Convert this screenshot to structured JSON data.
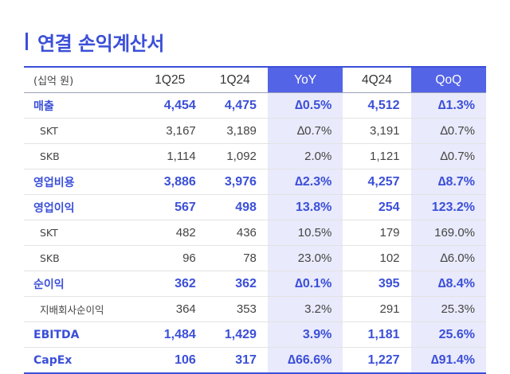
{
  "title": "연결 손익계산서",
  "header": {
    "label": "(십억 원)",
    "cols": [
      "1Q25",
      "1Q24",
      "YoY",
      "4Q24",
      "QoQ"
    ]
  },
  "rows": [
    {
      "label": "매출",
      "kind": "main",
      "values": [
        "4,454",
        "4,475",
        "∆0.5%",
        "4,512",
        "∆1.3%"
      ]
    },
    {
      "label": "SKT",
      "kind": "sub",
      "values": [
        "3,167",
        "3,189",
        "∆0.7%",
        "3,191",
        "∆0.7%"
      ]
    },
    {
      "label": "SKB",
      "kind": "sub",
      "values": [
        "1,114",
        "1,092",
        "2.0%",
        "1,121",
        "∆0.7%"
      ]
    },
    {
      "label": "영업비용",
      "kind": "main",
      "values": [
        "3,886",
        "3,976",
        "∆2.3%",
        "4,257",
        "∆8.7%"
      ]
    },
    {
      "label": "영업이익",
      "kind": "main",
      "values": [
        "567",
        "498",
        "13.8%",
        "254",
        "123.2%"
      ]
    },
    {
      "label": "SKT",
      "kind": "sub",
      "values": [
        "482",
        "436",
        "10.5%",
        "179",
        "169.0%"
      ]
    },
    {
      "label": "SKB",
      "kind": "sub",
      "values": [
        "96",
        "78",
        "23.0%",
        "102",
        "∆6.0%"
      ]
    },
    {
      "label": "순이익",
      "kind": "main",
      "values": [
        "362",
        "362",
        "∆0.1%",
        "395",
        "∆8.4%"
      ]
    },
    {
      "label": "지배회사순이익",
      "kind": "sub",
      "values": [
        "364",
        "353",
        "3.2%",
        "291",
        "25.3%"
      ]
    },
    {
      "label": "EBITDA",
      "kind": "main",
      "values": [
        "1,484",
        "1,429",
        "3.9%",
        "1,181",
        "25.6%"
      ]
    },
    {
      "label": "CapEx",
      "kind": "main",
      "values": [
        "106",
        "317",
        "∆66.6%",
        "1,227",
        "∆91.4%"
      ]
    }
  ],
  "colors": {
    "accent": "#3b4fd8",
    "header_highlight": "#5464e6",
    "column_highlight": "#e9eafb"
  }
}
